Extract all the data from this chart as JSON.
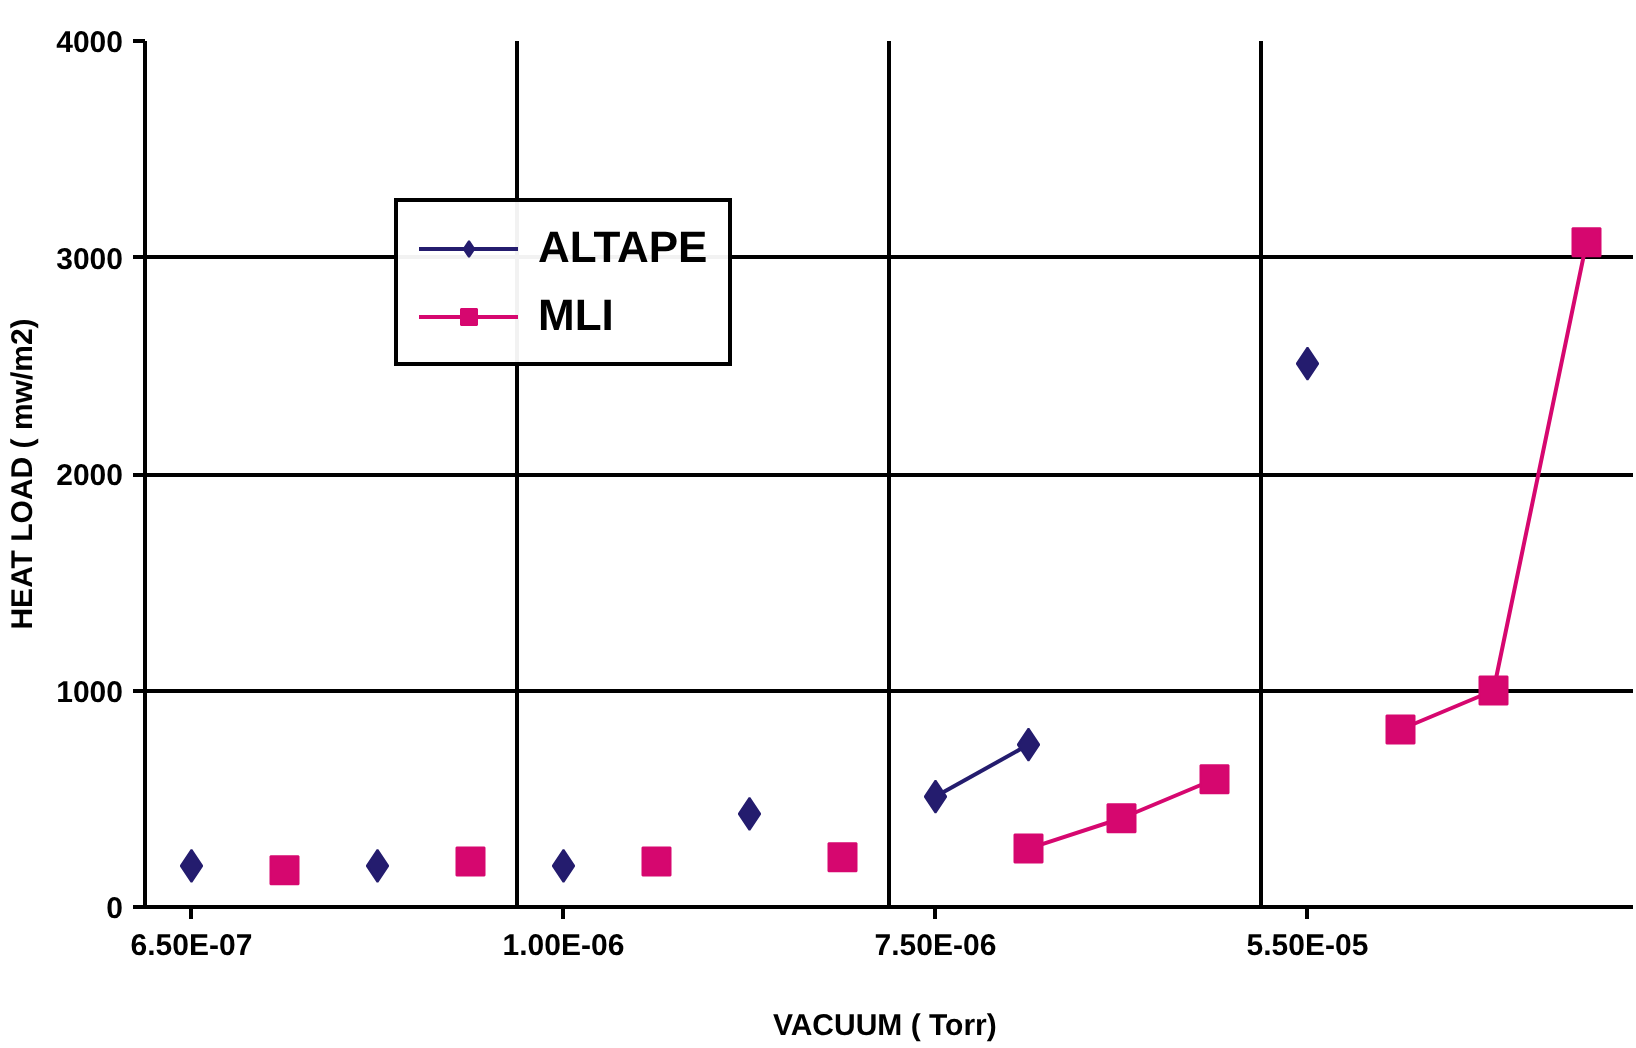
{
  "chart_data": {
    "type": "line",
    "xlabel": "VACUUM  ( Torr)",
    "ylabel": "HEAT LOAD ( mw/m2)",
    "categories": [
      "6.50E-07",
      null,
      null,
      null,
      "1.00E-06",
      null,
      null,
      null,
      "7.50E-06",
      null,
      null,
      null,
      "5.50E-05",
      null,
      null,
      null
    ],
    "ylim": [
      0,
      4000
    ],
    "yticks": [
      0,
      1000,
      2000,
      3000,
      4000
    ],
    "grid": true,
    "legend": "top left",
    "series": [
      {
        "name": "ALTAPE",
        "color": "#241c6e",
        "marker": "diamond",
        "values": [
          190,
          null,
          190,
          null,
          190,
          null,
          430,
          null,
          510,
          750,
          null,
          null,
          2510,
          null,
          null,
          null
        ]
      },
      {
        "name": "MLI",
        "color": "#d6076f",
        "marker": "square",
        "values": [
          null,
          170,
          null,
          210,
          null,
          210,
          null,
          230,
          null,
          270,
          410,
          590,
          null,
          820,
          1000,
          3070
        ]
      }
    ]
  }
}
